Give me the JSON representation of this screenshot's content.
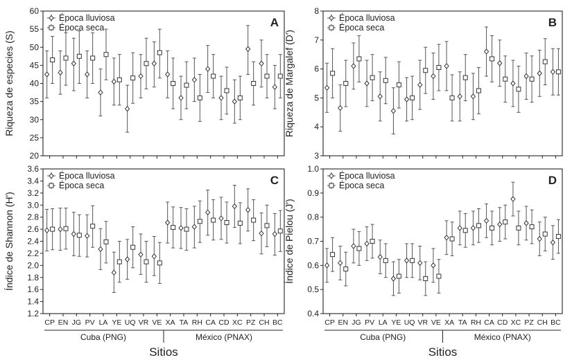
{
  "figure": {
    "x_title": "Sitios",
    "legend": [
      "Época lluviosa",
      "Época seca"
    ],
    "groups": [
      {
        "name": "Cuba (PNG)",
        "sites": [
          "CP",
          "EN",
          "JG",
          "PV",
          "LA",
          "YE",
          "UQ",
          "VR",
          "VE"
        ]
      },
      {
        "name": "México (PNAX)",
        "sites": [
          "XA",
          "TA",
          "RH",
          "CA",
          "CD",
          "XC",
          "PZ",
          "CH",
          "BC"
        ]
      }
    ]
  },
  "chart_data": [
    {
      "type": "errorbar",
      "panel_letter": "A",
      "ylabel": "Riqueza de especies (S)",
      "ylim": [
        20,
        60
      ],
      "yticks": [
        20,
        25,
        30,
        35,
        40,
        45,
        50,
        55,
        60
      ],
      "tick_decimals": 0,
      "categories": [
        "CP",
        "EN",
        "JG",
        "PV",
        "LA",
        "YE",
        "UQ",
        "VR",
        "VE",
        "XA",
        "TA",
        "RH",
        "CA",
        "CD",
        "XC",
        "PZ",
        "CH",
        "BC"
      ],
      "legend_position": "top-left",
      "series": [
        {
          "name": "Época lluviosa",
          "marker": "diamond",
          "mean": [
            42.5,
            43,
            45.5,
            42.5,
            37.5,
            40.5,
            33,
            42,
            45.5,
            42.5,
            36,
            41,
            44,
            36,
            35,
            49.5,
            45.5,
            39
          ],
          "low": [
            36,
            37,
            38,
            36,
            31,
            34,
            26.5,
            36,
            39,
            36,
            30,
            35,
            37.5,
            30,
            29,
            42.5,
            39,
            33
          ],
          "high": [
            49,
            49,
            52.5,
            49,
            44,
            47,
            39.5,
            48,
            51.5,
            49,
            42,
            47,
            50.5,
            42,
            41,
            56,
            52,
            45
          ]
        },
        {
          "name": "Época seca",
          "marker": "square",
          "mean": [
            46.5,
            47,
            47.5,
            47,
            48,
            41,
            41.5,
            45.5,
            48.5,
            40,
            39.5,
            36,
            42,
            38,
            36,
            40,
            42,
            42
          ],
          "low": [
            40,
            39.5,
            40,
            40,
            41,
            34,
            34.5,
            38.5,
            41.5,
            33,
            33,
            29.5,
            36,
            31.5,
            30,
            34,
            36,
            36
          ],
          "high": [
            53,
            54,
            54.5,
            54,
            55,
            48,
            48.5,
            52.5,
            55,
            47,
            46,
            42.5,
            48,
            44.5,
            42,
            46,
            48,
            48
          ]
        }
      ]
    },
    {
      "type": "errorbar",
      "panel_letter": "B",
      "ylabel": "Riqueza de Margalef (D')",
      "ylim": [
        3,
        8
      ],
      "yticks": [
        3,
        4,
        5,
        6,
        7,
        8
      ],
      "tick_decimals": 0,
      "categories": [
        "CP",
        "EN",
        "JG",
        "PV",
        "LA",
        "YE",
        "UQ",
        "VR",
        "VE",
        "XA",
        "TA",
        "RH",
        "CA",
        "CD",
        "XC",
        "PZ",
        "CH",
        "BC"
      ],
      "legend_position": "top-left",
      "series": [
        {
          "name": "Época lluviosa",
          "marker": "diamond",
          "mean": [
            5.35,
            4.65,
            6.1,
            5.5,
            5.05,
            4.55,
            4.95,
            5.45,
            5.75,
            6.1,
            5.05,
            5.05,
            6.6,
            6.2,
            5.5,
            5.75,
            5.85,
            5.9
          ],
          "low": [
            4.5,
            3.85,
            5.3,
            4.7,
            4.2,
            3.75,
            4.2,
            4.6,
            4.95,
            5.25,
            4.2,
            4.25,
            5.75,
            5.4,
            4.7,
            4.95,
            5.05,
            5.1
          ],
          "high": [
            6.2,
            5.45,
            6.9,
            6.3,
            5.9,
            5.35,
            5.7,
            6.3,
            6.55,
            6.95,
            5.9,
            5.85,
            7.45,
            7.0,
            6.3,
            6.55,
            6.65,
            6.7
          ]
        },
        {
          "name": "Época seca",
          "marker": "square",
          "mean": [
            5.85,
            5.5,
            6.35,
            5.7,
            5.6,
            5.45,
            5.0,
            5.95,
            6.05,
            5.0,
            5.7,
            5.25,
            6.35,
            5.65,
            5.3,
            5.65,
            6.25,
            5.9
          ],
          "low": [
            5.0,
            4.7,
            5.55,
            4.9,
            4.8,
            4.65,
            4.25,
            5.15,
            5.25,
            4.2,
            4.9,
            4.45,
            5.55,
            4.85,
            4.5,
            4.85,
            5.45,
            5.1
          ],
          "high": [
            6.7,
            6.3,
            7.15,
            6.5,
            6.4,
            6.25,
            5.75,
            6.75,
            6.85,
            5.8,
            6.5,
            6.05,
            7.15,
            6.45,
            6.1,
            6.45,
            7.05,
            6.7
          ]
        }
      ]
    },
    {
      "type": "errorbar",
      "panel_letter": "C",
      "ylabel": "Índice de Shannon (H')",
      "ylim": [
        1.2,
        3.6
      ],
      "yticks": [
        1.2,
        1.4,
        1.6,
        1.8,
        2.0,
        2.2,
        2.4,
        2.6,
        2.8,
        3.0,
        3.2,
        3.4,
        3.6
      ],
      "tick_decimals": 1,
      "categories": [
        "CP",
        "EN",
        "JG",
        "PV",
        "LA",
        "YE",
        "UQ",
        "VR",
        "VE",
        "XA",
        "TA",
        "RH",
        "CA",
        "CD",
        "XC",
        "PZ",
        "CH",
        "BC"
      ],
      "legend_position": "top-left",
      "series": [
        {
          "name": "Época lluviosa",
          "marker": "diamond",
          "mean": [
            2.58,
            2.6,
            2.52,
            2.49,
            2.27,
            1.88,
            2.1,
            2.18,
            2.15,
            2.71,
            2.62,
            2.64,
            2.88,
            2.78,
            2.98,
            2.92,
            2.53,
            2.52
          ],
          "low": [
            2.24,
            2.25,
            2.16,
            2.14,
            1.93,
            1.55,
            1.77,
            1.85,
            1.83,
            2.37,
            2.28,
            2.29,
            2.5,
            2.43,
            2.63,
            2.57,
            2.19,
            2.17
          ],
          "high": [
            2.93,
            2.95,
            2.88,
            2.84,
            2.61,
            2.22,
            2.43,
            2.52,
            2.48,
            3.05,
            2.96,
            2.98,
            3.25,
            3.13,
            3.33,
            3.27,
            2.87,
            2.86
          ]
        },
        {
          "name": "Época seca",
          "marker": "square",
          "mean": [
            2.6,
            2.61,
            2.5,
            2.65,
            2.39,
            2.06,
            2.3,
            2.06,
            2.04,
            2.63,
            2.6,
            2.73,
            2.75,
            2.71,
            2.7,
            2.75,
            2.66,
            2.57
          ],
          "low": [
            2.26,
            2.27,
            2.15,
            2.3,
            2.04,
            1.72,
            1.96,
            1.72,
            1.7,
            2.29,
            2.25,
            2.38,
            2.42,
            2.37,
            2.36,
            2.41,
            2.31,
            2.23
          ],
          "high": [
            2.94,
            2.95,
            2.84,
            2.99,
            2.73,
            2.4,
            2.64,
            2.4,
            2.38,
            2.97,
            2.94,
            3.07,
            3.09,
            3.05,
            3.04,
            3.09,
            3.0,
            2.91
          ]
        }
      ]
    },
    {
      "type": "errorbar",
      "panel_letter": "D",
      "ylabel": "Índice de Pielou (J')",
      "ylim": [
        0.4,
        1.0
      ],
      "yticks": [
        0.4,
        0.5,
        0.6,
        0.7,
        0.8,
        0.9,
        1.0
      ],
      "tick_decimals": 1,
      "categories": [
        "CP",
        "EN",
        "JG",
        "PV",
        "LA",
        "YE",
        "UQ",
        "VR",
        "VE",
        "XA",
        "TA",
        "RH",
        "CA",
        "CD",
        "XC",
        "PZ",
        "CH",
        "BC"
      ],
      "legend_position": "top-left",
      "series": [
        {
          "name": "Época lluviosa",
          "marker": "diamond",
          "mean": [
            0.6,
            0.61,
            0.68,
            0.69,
            0.635,
            0.545,
            0.62,
            0.61,
            0.6,
            0.715,
            0.755,
            0.755,
            0.785,
            0.77,
            0.875,
            0.775,
            0.71,
            0.695
          ],
          "low": [
            0.53,
            0.54,
            0.61,
            0.62,
            0.565,
            0.475,
            0.55,
            0.54,
            0.53,
            0.645,
            0.685,
            0.685,
            0.715,
            0.7,
            0.805,
            0.705,
            0.64,
            0.625
          ],
          "high": [
            0.67,
            0.68,
            0.75,
            0.76,
            0.705,
            0.615,
            0.69,
            0.68,
            0.67,
            0.785,
            0.825,
            0.825,
            0.855,
            0.84,
            0.945,
            0.845,
            0.78,
            0.765
          ]
        },
        {
          "name": "Época seca",
          "marker": "square",
          "mean": [
            0.645,
            0.585,
            0.67,
            0.7,
            0.62,
            0.555,
            0.62,
            0.545,
            0.555,
            0.71,
            0.745,
            0.765,
            0.755,
            0.78,
            0.755,
            0.76,
            0.73,
            0.72
          ],
          "low": [
            0.575,
            0.515,
            0.6,
            0.63,
            0.55,
            0.485,
            0.55,
            0.475,
            0.485,
            0.64,
            0.675,
            0.695,
            0.685,
            0.71,
            0.685,
            0.69,
            0.66,
            0.65
          ],
          "high": [
            0.715,
            0.655,
            0.74,
            0.77,
            0.69,
            0.625,
            0.69,
            0.615,
            0.625,
            0.78,
            0.815,
            0.835,
            0.825,
            0.85,
            0.825,
            0.83,
            0.8,
            0.79
          ]
        }
      ]
    }
  ]
}
